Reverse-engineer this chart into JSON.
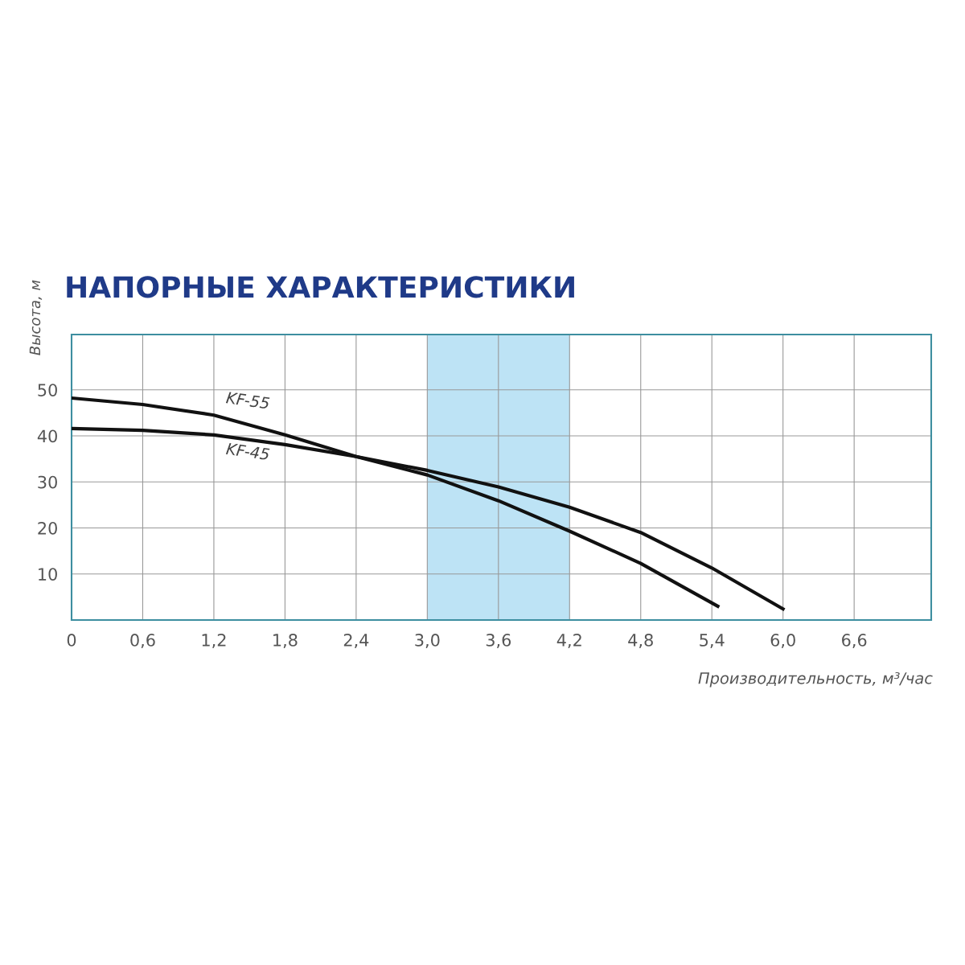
{
  "chart_data": {
    "type": "line",
    "title": "НАПОРНЫЕ ХАРАКТЕРИСТИКИ",
    "xlabel": "Производительность, м³/час",
    "ylabel": "Высота, м",
    "series": [
      {
        "name": "KF-55",
        "color": "#111111",
        "x": [
          0,
          0.6,
          1.2,
          1.8,
          2.4,
          3.0,
          3.6,
          4.2,
          4.8,
          5.45
        ],
        "values": [
          48.2,
          46.8,
          44.5,
          40.2,
          35.5,
          31.5,
          25.9,
          19.3,
          12.3,
          3.0
        ]
      },
      {
        "name": "KF-45",
        "color": "#111111",
        "x": [
          0,
          0.6,
          1.2,
          1.8,
          2.4,
          3.0,
          3.6,
          4.2,
          4.8,
          5.4,
          6.0
        ],
        "values": [
          41.6,
          41.2,
          40.2,
          38.1,
          35.5,
          32.5,
          28.9,
          24.5,
          19.0,
          11.3,
          2.4
        ]
      }
    ],
    "bands": [
      {
        "axis": "x",
        "from": 3.0,
        "to": 4.2,
        "color": "#bde3f5"
      }
    ],
    "xlim": [
      0,
      7.25
    ],
    "ylim": [
      0,
      62
    ],
    "xticks": [
      0,
      {
        "value": 0.6,
        "label": "0,6"
      },
      {
        "value": 1.2,
        "label": "1,2"
      },
      {
        "value": 1.8,
        "label": "1,8"
      },
      {
        "value": 2.4,
        "label": "2,4"
      },
      {
        "value": 3.0,
        "label": "3,0"
      },
      {
        "value": 3.6,
        "label": "3,6"
      },
      {
        "value": 4.2,
        "label": "4,2"
      },
      {
        "value": 4.8,
        "label": "4,8"
      },
      {
        "value": 5.4,
        "label": "5,4"
      },
      {
        "value": 6.0,
        "label": "6,0"
      },
      {
        "value": 6.6,
        "label": "6,6"
      }
    ],
    "yticks": [
      10,
      20,
      30,
      40,
      50
    ],
    "grid": true,
    "legend": false,
    "marker": "none",
    "line_style": "solid"
  }
}
